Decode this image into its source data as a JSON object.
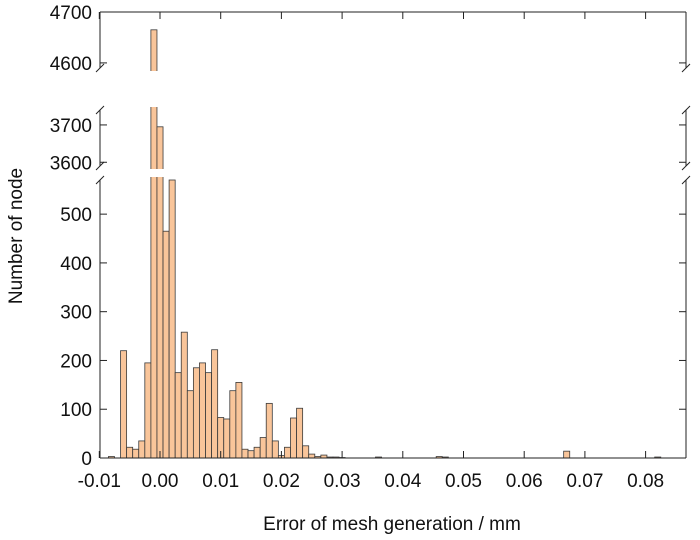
{
  "chart_data": {
    "type": "bar",
    "subtype": "histogram",
    "xlabel": "Error of mesh generation / mm",
    "ylabel": "Number of node",
    "bin_width": 0.001,
    "xlim": [
      -0.01,
      0.083
    ],
    "y_axis": {
      "broken": true,
      "segments": [
        {
          "range": [
            0,
            570
          ],
          "ticks": [
            "0",
            "100",
            "200",
            "300",
            "400",
            "500"
          ]
        },
        {
          "range": [
            3590,
            3740
          ],
          "ticks": [
            "3600",
            "3700"
          ]
        },
        {
          "range": [
            4590,
            4700
          ],
          "ticks": [
            "4600",
            "4700"
          ]
        }
      ]
    },
    "x_ticks": [
      "-0.01",
      "0.00",
      "0.01",
      "0.02",
      "0.03",
      "0.04",
      "0.05",
      "0.06",
      "0.07",
      "0.08"
    ],
    "x_tick_values": [
      -0.01,
      0.0,
      0.01,
      0.02,
      0.03,
      0.04,
      0.05,
      0.06,
      0.07,
      0.08
    ],
    "grid": false,
    "colors": {
      "bar_fill": "#f9c59a",
      "bar_edge": "#3a3a3a",
      "axis": "#222222"
    },
    "bins_start": [
      -0.0085,
      -0.0065,
      -0.0055,
      -0.0045,
      -0.0035,
      -0.0025,
      -0.0015,
      -0.0005,
      0.0005,
      0.0015,
      0.0025,
      0.0035,
      0.0045,
      0.0055,
      0.0065,
      0.0075,
      0.0085,
      0.0095,
      0.0105,
      0.0115,
      0.0125,
      0.0135,
      0.0145,
      0.0155,
      0.0165,
      0.0175,
      0.0185,
      0.0195,
      0.0205,
      0.0215,
      0.0225,
      0.0235,
      0.0245,
      0.0255,
      0.0265,
      0.0275,
      0.0285,
      0.0295,
      0.0355,
      0.0455,
      0.0465,
      0.0665,
      0.0815
    ],
    "values": [
      3,
      220,
      22,
      18,
      35,
      195,
      4665,
      3695,
      465,
      570,
      175,
      258,
      138,
      185,
      195,
      175,
      222,
      83,
      80,
      138,
      155,
      18,
      15,
      22,
      42,
      112,
      35,
      5,
      22,
      82,
      102,
      25,
      8,
      3,
      6,
      2,
      2,
      1,
      2,
      3,
      2,
      14,
      2
    ]
  }
}
